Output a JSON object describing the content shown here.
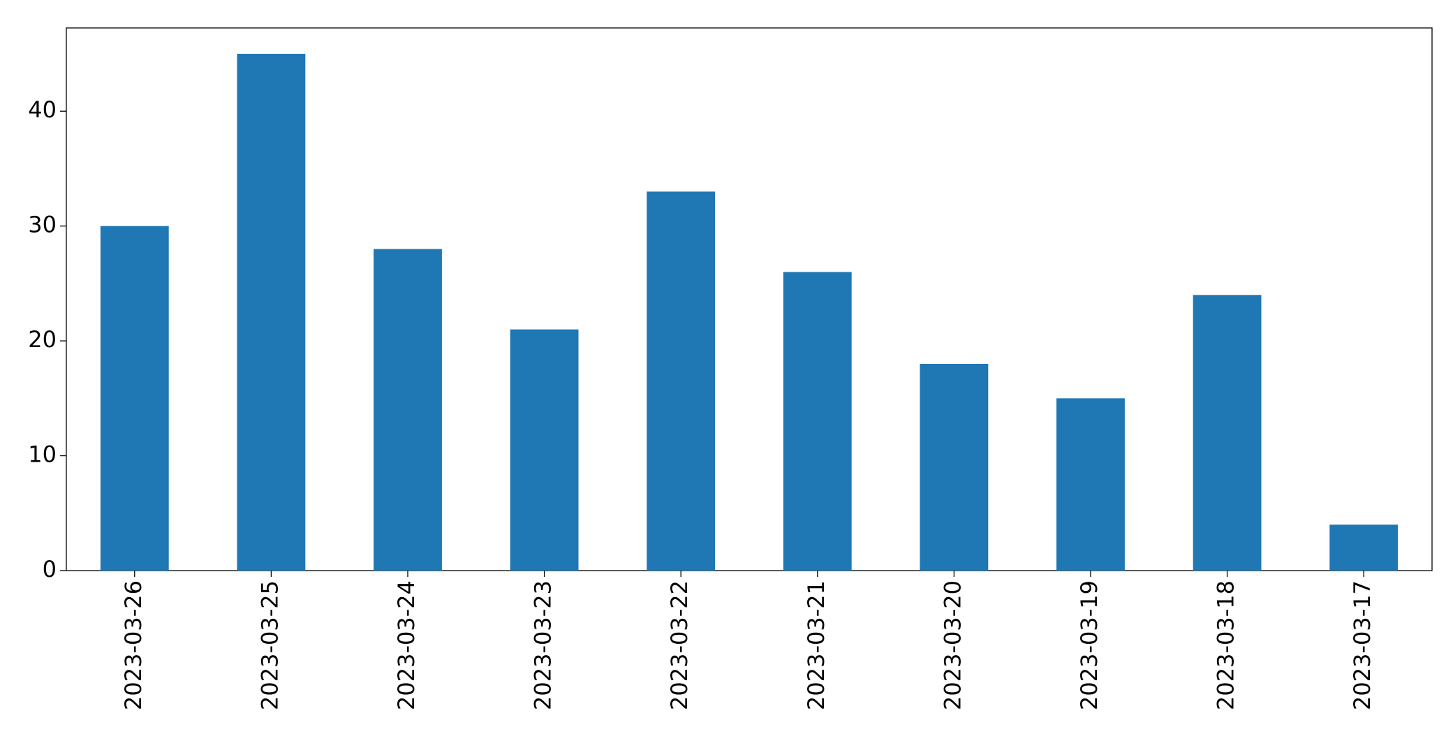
{
  "chart_data": {
    "type": "bar",
    "categories": [
      "2023-03-26",
      "2023-03-25",
      "2023-03-24",
      "2023-03-23",
      "2023-03-22",
      "2023-03-21",
      "2023-03-20",
      "2023-03-19",
      "2023-03-18",
      "2023-03-17"
    ],
    "values": [
      30,
      45,
      28,
      21,
      33,
      26,
      18,
      15,
      24,
      4
    ],
    "color": "#1f77b4",
    "ylim": [
      0,
      47.25
    ],
    "yticks": [
      0,
      10,
      20,
      30,
      40
    ],
    "grid": false
  }
}
